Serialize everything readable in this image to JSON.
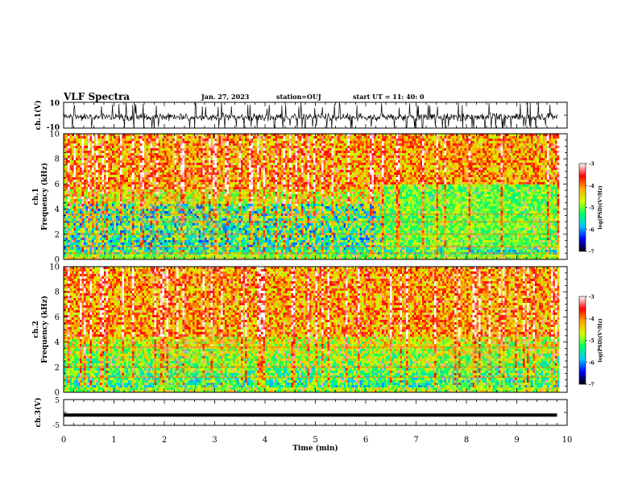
{
  "header": {
    "title": "VLF Spectra",
    "date": "Jan. 27, 2023",
    "station": "station=OUJ",
    "start": "start  UT =  11: 40: 0"
  },
  "colors": {
    "spec_low": "#1a1aa0",
    "spec_mid": "#20d0a0",
    "spec_high": "#e83020",
    "colorbar": [
      "#000000",
      "#0000ff",
      "#00c8ff",
      "#00ff66",
      "#d2ff00",
      "#ffaa00",
      "#ff0000",
      "#ffffff"
    ]
  },
  "chart_data": [
    {
      "type": "line",
      "name": "ch1-waveform",
      "ylabel": "ch.1(V)",
      "ylim": [
        -10,
        10
      ],
      "y_tick_labels": [
        "10",
        "-10"
      ],
      "xlim": [
        0,
        10
      ]
    },
    {
      "type": "heatmap",
      "name": "ch1-spectrogram",
      "ylabel": "ch.1\nFrequency (kHz)",
      "ylim": [
        0,
        10
      ],
      "y_tick_labels": [
        "0",
        "2",
        "4",
        "6",
        "8",
        "10"
      ],
      "xlim": [
        0,
        10
      ],
      "data_end_min": 9.8,
      "colorbar": {
        "label": "log(PSD)(V²/Hz)",
        "range": [
          -7,
          -3
        ],
        "tick_labels": [
          "-3",
          "-4",
          "-5",
          "-6",
          "-7"
        ]
      },
      "bands_khz": [
        0.5,
        1.0,
        2.0,
        3.0,
        3.6
      ],
      "regime_change_min": 6.3
    },
    {
      "type": "heatmap",
      "name": "ch2-spectrogram",
      "ylabel": "ch.2\nFrequency (kHz)",
      "ylim": [
        0,
        10
      ],
      "y_tick_labels": [
        "0",
        "2",
        "4",
        "6",
        "8",
        "10"
      ],
      "xlim": [
        0,
        10
      ],
      "data_end_min": 9.8,
      "colorbar": {
        "label": "log(PSD)(V²/Hz)",
        "range": [
          -7,
          -3
        ],
        "tick_labels": [
          "-3",
          "-4",
          "-5",
          "-6",
          "-7"
        ]
      },
      "bands_khz": [
        1.2,
        2.0,
        3.6
      ]
    },
    {
      "type": "line",
      "name": "ch3-signal",
      "ylabel": "ch.3(V)",
      "ylim": [
        -5,
        5
      ],
      "y_tick_labels": [
        "5",
        "-5"
      ],
      "xlim": [
        0,
        10
      ],
      "level": -1,
      "data_end_min": 9.8
    }
  ],
  "xaxis": {
    "label": "Time (min)",
    "tick_labels": [
      "0",
      "1",
      "2",
      "3",
      "4",
      "5",
      "6",
      "7",
      "8",
      "9",
      "10"
    ]
  }
}
